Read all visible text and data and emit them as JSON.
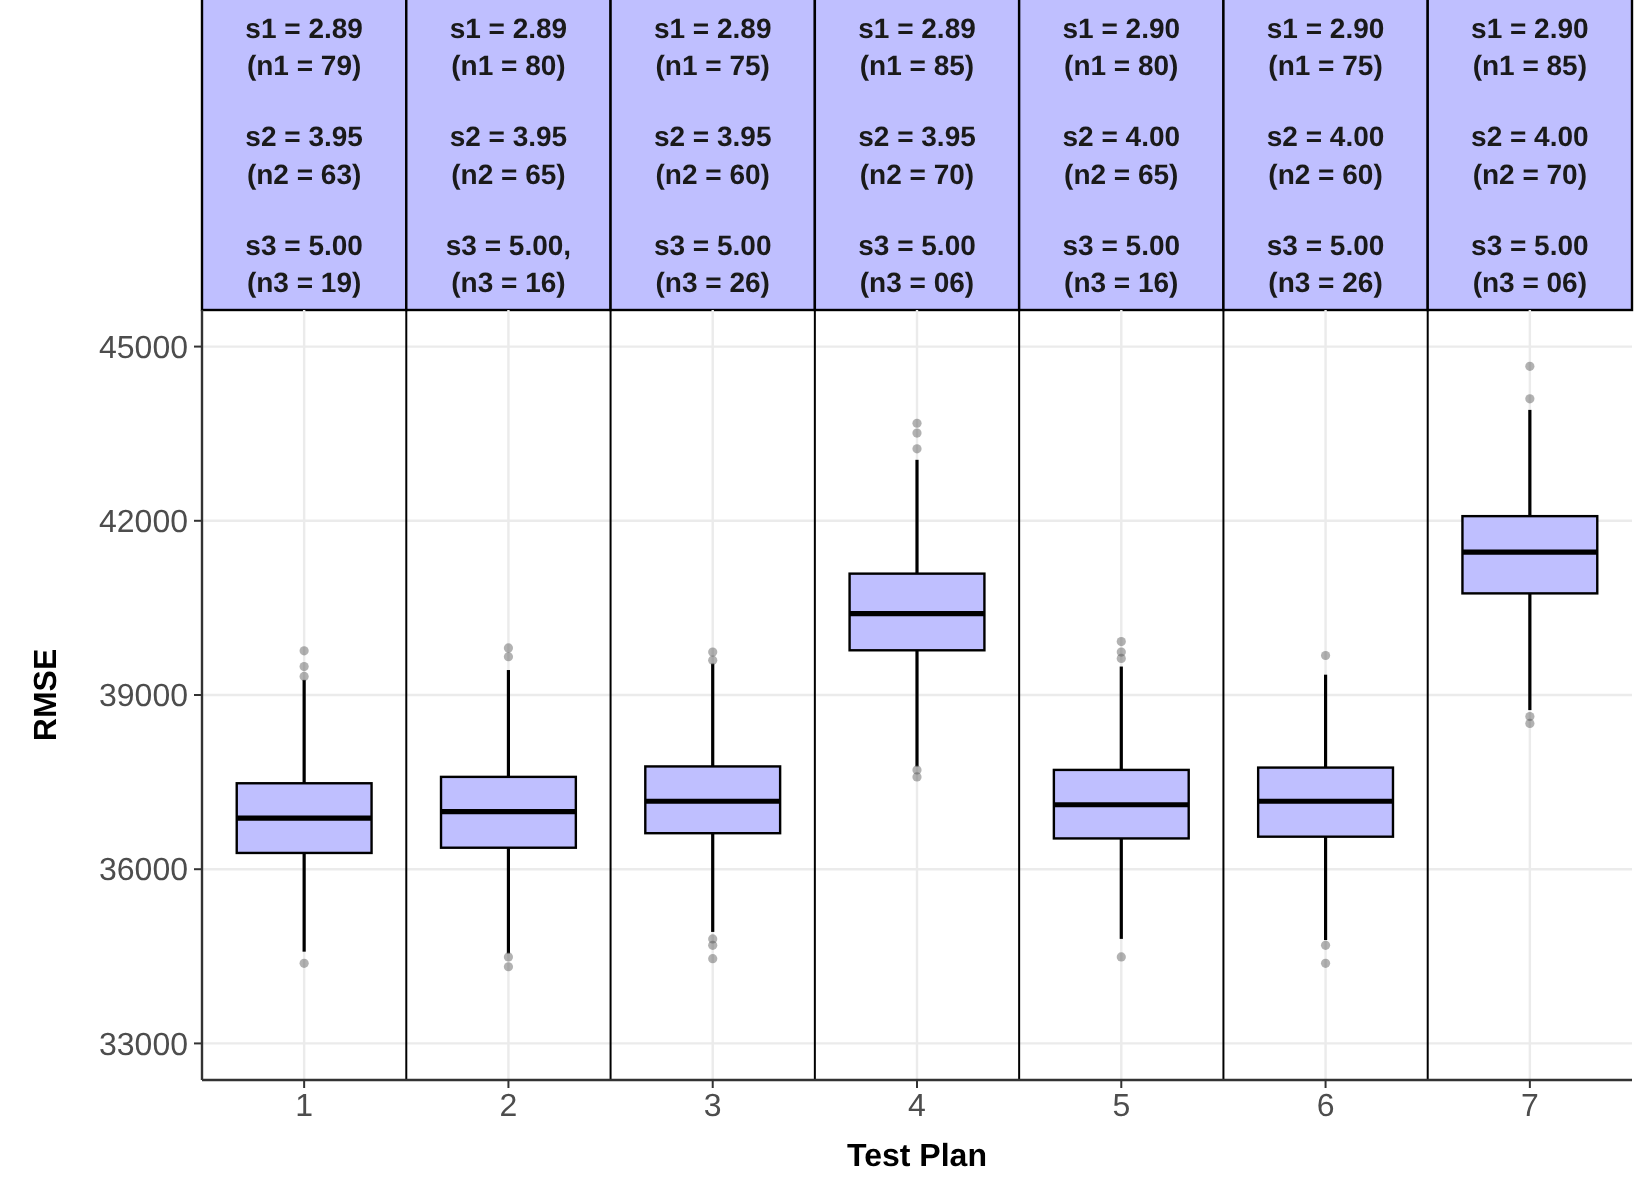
{
  "chart_data": {
    "type": "box",
    "xlabel": "Test Plan",
    "ylabel": "RMSE",
    "categories": [
      "1",
      "2",
      "3",
      "4",
      "5",
      "6",
      "7"
    ],
    "ylim": [
      32370,
      45630
    ],
    "yticks": [
      33000,
      36000,
      39000,
      42000,
      45000
    ],
    "grid": true,
    "color": "#bfbfff",
    "boxes": [
      {
        "low": 34580,
        "q1": 36280,
        "median": 36880,
        "q3": 37480,
        "high": 39260,
        "outliers": [
          39760,
          39490,
          39320,
          34380
        ]
      },
      {
        "low": 34550,
        "q1": 36370,
        "median": 36990,
        "q3": 37590,
        "high": 39430,
        "outliers": [
          39810,
          39660,
          34490,
          34320
        ]
      },
      {
        "low": 34920,
        "q1": 36620,
        "median": 37170,
        "q3": 37770,
        "high": 39540,
        "outliers": [
          39740,
          39600,
          34800,
          34690,
          34460
        ]
      },
      {
        "low": 37770,
        "q1": 39770,
        "median": 40400,
        "q3": 41090,
        "high": 43050,
        "outliers": [
          43680,
          43510,
          43240,
          37710,
          37590
        ]
      },
      {
        "low": 34800,
        "q1": 36530,
        "median": 37110,
        "q3": 37710,
        "high": 39490,
        "outliers": [
          39920,
          39740,
          39630,
          34490
        ]
      },
      {
        "low": 34780,
        "q1": 36560,
        "median": 37170,
        "q3": 37750,
        "high": 39350,
        "outliers": [
          39680,
          34690,
          34380
        ]
      },
      {
        "low": 38740,
        "q1": 40750,
        "median": 41460,
        "q3": 42080,
        "high": 43910,
        "outliers": [
          44660,
          44100,
          38630,
          38510
        ]
      }
    ],
    "annotations": [
      "s1 = 2.89",
      "(n1 = 79)",
      "s2 = 3.95",
      "(n2 = 63)",
      "s3 = 5.00",
      "(n3 = 19)",
      "s1 = 2.89",
      "(n1 = 80)",
      "s2 = 3.95",
      "(n2 = 65)",
      "s3 = 5.00,",
      "(n3 = 16)",
      "s1 = 2.89",
      "(n1 = 75)",
      "s2 = 3.95",
      "(n2 = 60)",
      "s3 = 5.00",
      "(n3 = 26)",
      "s1 = 2.89",
      "(n1 = 85)",
      "s2 = 3.95",
      "(n2 = 70)",
      "s3 = 5.00",
      "(n3 = 06)",
      "s1 = 2.90",
      "(n1 = 80)",
      "s2 = 4.00",
      "(n2 = 65)",
      "s3 = 5.00",
      "(n3 = 16)",
      "s1 = 2.90",
      "(n1 = 75)",
      "s2 = 4.00",
      "(n2 = 60)",
      "s3 = 5.00",
      "(n3 = 26)",
      "s1 = 2.90",
      "(n1 = 85)",
      "s2 = 4.00",
      "(n2 = 70)",
      "s3 = 5.00",
      "(n3 = 06)"
    ]
  }
}
